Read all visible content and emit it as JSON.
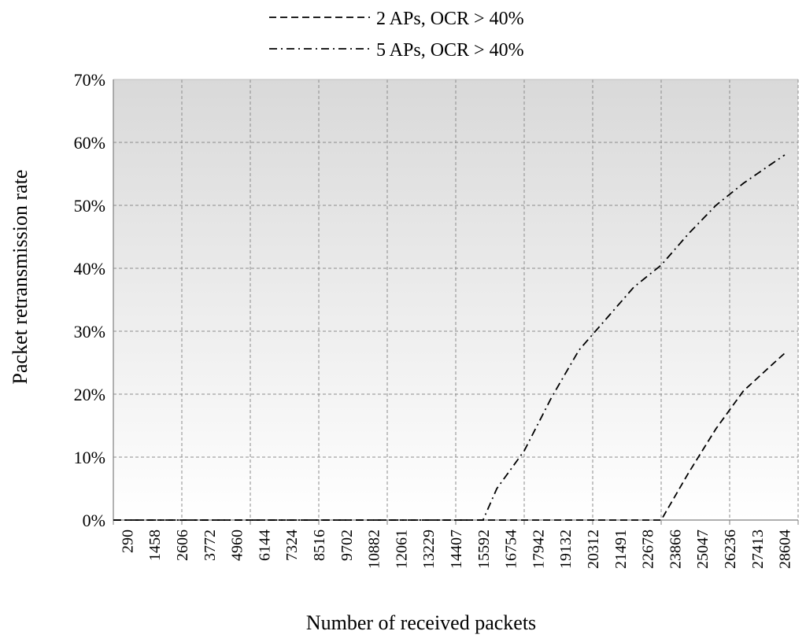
{
  "chart_data": {
    "type": "line",
    "title": "",
    "xlabel": "Number of received packets",
    "ylabel": "Packet retransmission rate",
    "categories": [
      "290",
      "1458",
      "2606",
      "3772",
      "4960",
      "6144",
      "7324",
      "8516",
      "9702",
      "10882",
      "12061",
      "13229",
      "14407",
      "15592",
      "16754",
      "17942",
      "19132",
      "20312",
      "21491",
      "22678",
      "23866",
      "25047",
      "26236",
      "27413",
      "28604"
    ],
    "y_ticks": [
      "0%",
      "10%",
      "20%",
      "30%",
      "40%",
      "50%",
      "60%",
      "70%"
    ],
    "ylim": [
      0,
      70
    ],
    "grid": true,
    "legend": "top-center",
    "series": [
      {
        "name": "2 APs, OCR > 40%",
        "style": "dashed",
        "points": [
          [
            290,
            0
          ],
          [
            1458,
            0
          ],
          [
            2606,
            0
          ],
          [
            3772,
            0
          ],
          [
            4960,
            0
          ],
          [
            6144,
            0
          ],
          [
            7324,
            0
          ],
          [
            8516,
            0
          ],
          [
            9702,
            0
          ],
          [
            10882,
            0
          ],
          [
            12061,
            0
          ],
          [
            13229,
            0
          ],
          [
            14407,
            0
          ],
          [
            15592,
            0
          ],
          [
            16754,
            0
          ],
          [
            17942,
            0
          ],
          [
            19132,
            0
          ],
          [
            20312,
            0
          ],
          [
            21491,
            0
          ],
          [
            22678,
            0
          ],
          [
            23866,
            0
          ],
          [
            25047,
            7.5
          ],
          [
            26236,
            14.5
          ],
          [
            27413,
            20.5
          ],
          [
            28604,
            24.5
          ],
          [
            29210,
            26.5
          ]
        ]
      },
      {
        "name": "5 APs, OCR > 40%",
        "style": "dash-dot",
        "points": [
          [
            290,
            0
          ],
          [
            1458,
            0
          ],
          [
            2606,
            0
          ],
          [
            3772,
            0
          ],
          [
            4960,
            0
          ],
          [
            6144,
            0
          ],
          [
            7324,
            0
          ],
          [
            8516,
            0
          ],
          [
            9702,
            0
          ],
          [
            10882,
            0
          ],
          [
            12061,
            0
          ],
          [
            13229,
            0
          ],
          [
            14407,
            0
          ],
          [
            15592,
            0
          ],
          [
            16170,
            0
          ],
          [
            16754,
            5
          ],
          [
            17942,
            11
          ],
          [
            19132,
            19.5
          ],
          [
            20312,
            27
          ],
          [
            21491,
            32
          ],
          [
            22678,
            37
          ],
          [
            23866,
            40.5
          ],
          [
            25047,
            45.5
          ],
          [
            26236,
            50
          ],
          [
            27413,
            53.5
          ],
          [
            28604,
            56.5
          ],
          [
            29210,
            58
          ]
        ]
      }
    ]
  }
}
